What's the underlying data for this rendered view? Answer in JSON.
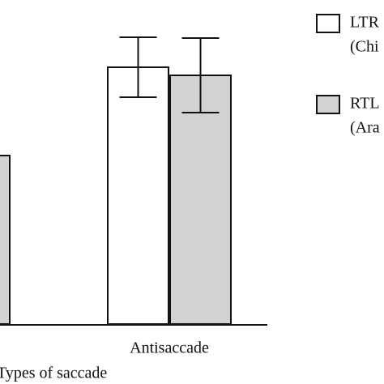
{
  "chart_data": {
    "type": "bar",
    "categories": [
      null,
      "Antisaccade"
    ],
    "x_label": "Types of saccade",
    "ylim": [
      0,
      400
    ],
    "series": [
      {
        "name": "LTR",
        "subtitle": "(Chi",
        "color": "#ffffff",
        "values": [
          null,
          317
        ],
        "errors": [
          null,
          37
        ]
      },
      {
        "name": "RTL",
        "subtitle": "(Ara",
        "color": "#d2d3d0",
        "values": [
          208,
          307
        ],
        "errors": [
          null,
          46
        ]
      }
    ]
  }
}
